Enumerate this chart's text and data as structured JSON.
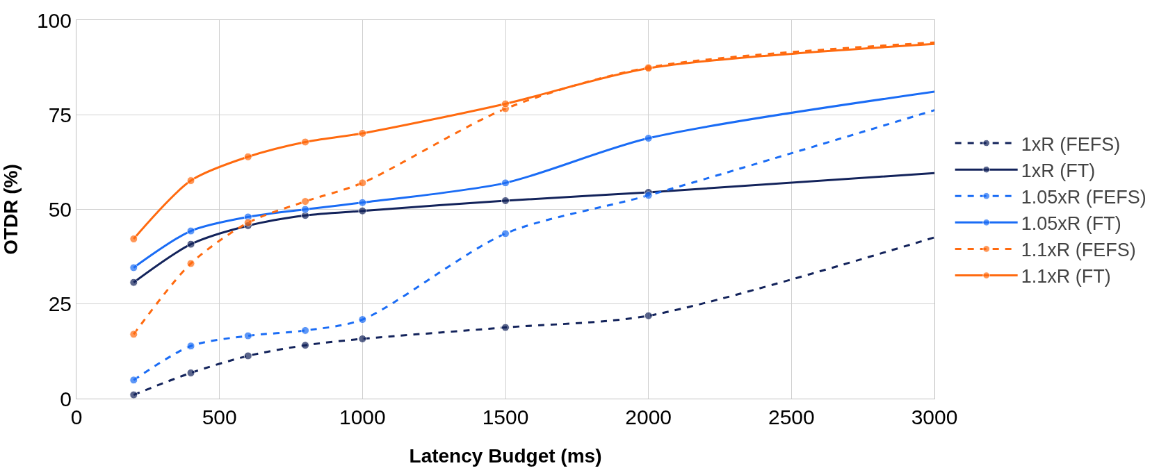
{
  "chart_data": {
    "type": "line",
    "xlabel": "Latency Budget (ms)",
    "ylabel": "OTDR (%)",
    "x": [
      200,
      400,
      600,
      800,
      1000,
      1500,
      2000,
      3000
    ],
    "xlim": [
      0,
      3000
    ],
    "xticks": [
      0,
      500,
      1000,
      1500,
      2000,
      2500,
      3000
    ],
    "ylim": [
      0,
      100
    ],
    "yticks": [
      0,
      25,
      50,
      75,
      100
    ],
    "grid": true,
    "legend": "right",
    "marker": "circle",
    "series": [
      {
        "name": "1xR (FEFS)",
        "color": "#13235b",
        "line_style": "dashed",
        "values": [
          1.0,
          6.8,
          11.3,
          14.1,
          15.8,
          18.8,
          21.9,
          42.6
        ]
      },
      {
        "name": "1xR (FT)",
        "color": "#13235b",
        "line_style": "solid",
        "values": [
          30.7,
          40.8,
          45.7,
          48.4,
          49.6,
          52.3,
          54.5,
          59.6
        ]
      },
      {
        "name": "1.05xR (FEFS)",
        "color": "#1a6cf5",
        "line_style": "dashed",
        "values": [
          4.9,
          13.9,
          16.6,
          18.0,
          20.9,
          43.6,
          53.7,
          76.2
        ]
      },
      {
        "name": "1.05xR (FT)",
        "color": "#1a6cf5",
        "line_style": "solid",
        "values": [
          34.6,
          44.3,
          48.0,
          50.0,
          51.8,
          57.0,
          68.8,
          81.1
        ]
      },
      {
        "name": "1.1xR (FEFS)",
        "color": "#ff6a0f",
        "line_style": "dashed",
        "values": [
          17.0,
          35.7,
          46.5,
          52.1,
          57.0,
          76.6,
          87.5,
          94.1
        ]
      },
      {
        "name": "1.1xR (FT)",
        "color": "#ff6a0f",
        "line_style": "solid",
        "values": [
          42.2,
          57.6,
          63.9,
          67.8,
          70.1,
          77.9,
          87.3,
          93.7
        ]
      }
    ]
  }
}
